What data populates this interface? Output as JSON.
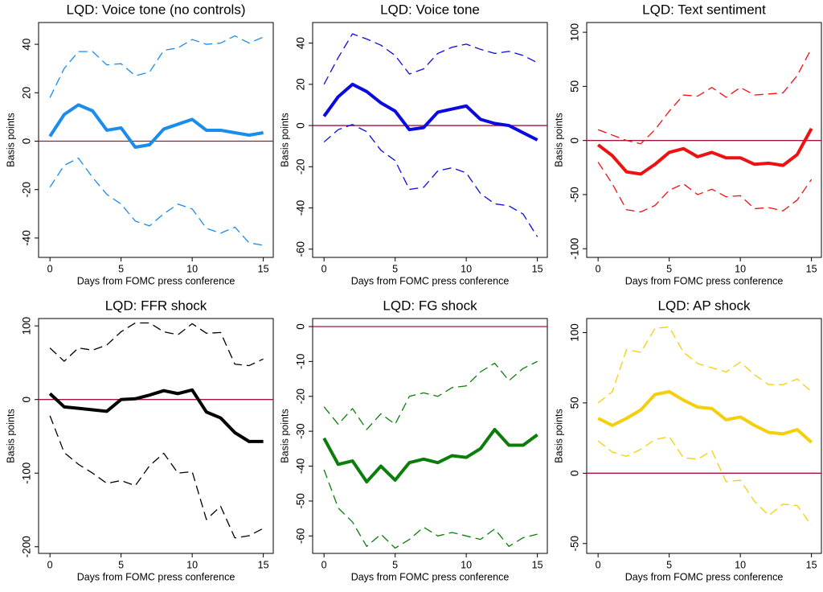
{
  "chart_data": [
    {
      "type": "line",
      "title": "LQD: Voice tone (no controls)",
      "y_label": "Basis points",
      "x_label": "Days from FOMC press conference",
      "x": [
        0,
        1,
        2,
        3,
        4,
        5,
        6,
        7,
        8,
        9,
        10,
        11,
        12,
        13,
        14,
        15
      ],
      "xlim": [
        -0.8,
        15.7
      ],
      "xticks": [
        0,
        5,
        10,
        15
      ],
      "ylim": [
        -48,
        49
      ],
      "yticks": [
        -40,
        -20,
        0,
        20,
        40
      ],
      "reference_line": 0,
      "reference_color": "#a0143c",
      "series": [
        {
          "color": "#1a8ceb",
          "line_style": "solid",
          "values": [
            2,
            11,
            15,
            12.5,
            4.5,
            5.5,
            -2.5,
            -1.5,
            5,
            7,
            9,
            4.5,
            4.5,
            3.5,
            2.5,
            3.5
          ]
        },
        {
          "color": "#1a8ceb",
          "line_style": "dashed",
          "values": [
            18,
            30,
            37,
            37,
            31.5,
            32,
            27,
            28.5,
            37.5,
            38.5,
            42,
            40,
            40.5,
            43.5,
            40.5,
            43
          ]
        },
        {
          "color": "#1a8ceb",
          "line_style": "dashed",
          "values": [
            -19,
            -10,
            -7,
            -15,
            -22,
            -26,
            -33,
            -35,
            -30,
            -26,
            -28,
            -36,
            -38,
            -35.5,
            -42,
            -43
          ]
        }
      ]
    },
    {
      "type": "line",
      "title": "LQD: Voice tone",
      "y_label": "Basis points",
      "x_label": "Days from FOMC press conference",
      "x": [
        0,
        1,
        2,
        3,
        4,
        5,
        6,
        7,
        8,
        9,
        10,
        11,
        12,
        13,
        14,
        15
      ],
      "xlim": [
        -0.8,
        15.7
      ],
      "xticks": [
        0,
        5,
        10,
        15
      ],
      "ylim": [
        -64,
        50
      ],
      "yticks": [
        -60,
        -40,
        -20,
        0,
        20,
        40
      ],
      "reference_line": 0,
      "reference_color": "#a0143c",
      "series": [
        {
          "color": "#0a0ae0",
          "line_style": "solid",
          "values": [
            4.5,
            14,
            20,
            16.5,
            11,
            7,
            -2,
            -1,
            6.5,
            8,
            9.5,
            3,
            1,
            0,
            -3.5,
            -7
          ]
        },
        {
          "color": "#0a0ae0",
          "line_style": "dashed",
          "values": [
            20,
            33,
            44.5,
            42,
            39,
            34,
            25,
            27.5,
            35,
            38,
            39.5,
            37,
            35,
            36,
            34,
            30.5
          ]
        },
        {
          "color": "#0a0ae0",
          "line_style": "dashed",
          "values": [
            -8,
            -2,
            0.5,
            -3,
            -12,
            -17,
            -31,
            -30,
            -22,
            -20.5,
            -23,
            -33,
            -38,
            -39,
            -43,
            -54
          ]
        }
      ]
    },
    {
      "type": "line",
      "title": "LQD: Text sentiment",
      "y_label": "Basis points",
      "x_label": "Days from FOMC press conference",
      "x": [
        0,
        1,
        2,
        3,
        4,
        5,
        6,
        7,
        8,
        9,
        10,
        11,
        12,
        13,
        14,
        15
      ],
      "xlim": [
        -0.8,
        15.7
      ],
      "xticks": [
        0,
        5,
        10,
        15
      ],
      "ylim": [
        -108,
        109
      ],
      "yticks": [
        -100,
        -50,
        0,
        50,
        100
      ],
      "reference_line": 0,
      "reference_color": "#a0143c",
      "series": [
        {
          "color": "#ee1111",
          "line_style": "solid",
          "values": [
            -4,
            -14,
            -29,
            -31,
            -22,
            -11,
            -7.5,
            -15,
            -11,
            -16,
            -16,
            -22,
            -21,
            -23,
            -13,
            11
          ]
        },
        {
          "color": "#ee1111",
          "line_style": "dashed",
          "values": [
            10,
            5,
            0,
            -3,
            10,
            27,
            42,
            41,
            49,
            40,
            49,
            42,
            43,
            44,
            60,
            85
          ]
        },
        {
          "color": "#ee1111",
          "line_style": "dashed",
          "values": [
            -20,
            -40,
            -64,
            -66,
            -60,
            -46,
            -40,
            -50,
            -45,
            -52,
            -51,
            -63,
            -62,
            -65,
            -55,
            -36
          ]
        }
      ]
    },
    {
      "type": "line",
      "title": "LQD: FFR shock",
      "y_label": "Basis points",
      "x_label": "Days from FOMC press conference",
      "x": [
        0,
        1,
        2,
        3,
        4,
        5,
        6,
        7,
        8,
        9,
        10,
        11,
        12,
        13,
        14,
        15
      ],
      "xlim": [
        -0.8,
        15.7
      ],
      "xticks": [
        0,
        5,
        10,
        15
      ],
      "ylim": [
        -209,
        110
      ],
      "yticks": [
        -200,
        -100,
        0,
        100
      ],
      "reference_line": 0,
      "reference_color": "#a0143c",
      "series": [
        {
          "color": "#000000",
          "line_style": "solid",
          "values": [
            8,
            -10,
            -12,
            -14,
            -16,
            0,
            1,
            6,
            12,
            8,
            13,
            -17,
            -25,
            -45,
            -57,
            -57
          ]
        },
        {
          "color": "#000000",
          "line_style": "dashed",
          "values": [
            70,
            52,
            70,
            67,
            74,
            92,
            104,
            104,
            92,
            88,
            103,
            90,
            91,
            48,
            46,
            55
          ]
        },
        {
          "color": "#000000",
          "line_style": "dashed",
          "values": [
            -22,
            -72,
            -88,
            -100,
            -114,
            -110,
            -117,
            -90,
            -73,
            -100,
            -98,
            -163,
            -145,
            -188,
            -185,
            -175
          ]
        }
      ]
    },
    {
      "type": "line",
      "title": "LQD: FG shock",
      "y_label": "Basis points",
      "x_label": "Days from FOMC press conference",
      "x": [
        0,
        1,
        2,
        3,
        4,
        5,
        6,
        7,
        8,
        9,
        10,
        11,
        12,
        13,
        14,
        15
      ],
      "xlim": [
        -0.8,
        15.7
      ],
      "xticks": [
        0,
        5,
        10,
        15
      ],
      "ylim": [
        -65,
        2.3
      ],
      "yticks": [
        -60,
        -50,
        -40,
        -30,
        -20,
        -10,
        0
      ],
      "reference_line": 0,
      "reference_color": "#a0143c",
      "series": [
        {
          "color": "#0a7d0a",
          "line_style": "solid",
          "values": [
            -32,
            -39.5,
            -38.5,
            -44.5,
            -40,
            -44,
            -39,
            -38,
            -39,
            -37,
            -37.5,
            -35,
            -29.5,
            -34,
            -34,
            -31
          ]
        },
        {
          "color": "#0a7d0a",
          "line_style": "dashed",
          "values": [
            -23,
            -28,
            -23.5,
            -29.5,
            -25,
            -28,
            -20,
            -19,
            -20,
            -17.5,
            -17,
            -13,
            -10.5,
            -15.5,
            -12,
            -10
          ]
        },
        {
          "color": "#0a7d0a",
          "line_style": "dashed",
          "values": [
            -41,
            -52,
            -56,
            -63,
            -59.5,
            -63.5,
            -61,
            -57.5,
            -60,
            -59,
            -60,
            -61,
            -58,
            -63,
            -60.5,
            -59.5
          ]
        }
      ]
    },
    {
      "type": "line",
      "title": "LQD: AP shock",
      "y_label": "Basis points",
      "x_label": "Days from FOMC press conference",
      "x": [
        0,
        1,
        2,
        3,
        4,
        5,
        6,
        7,
        8,
        9,
        10,
        11,
        12,
        13,
        14,
        15
      ],
      "xlim": [
        -0.8,
        15.7
      ],
      "xticks": [
        0,
        5,
        10,
        15
      ],
      "ylim": [
        -57,
        110
      ],
      "yticks": [
        -50,
        0,
        50,
        100
      ],
      "reference_line": 0,
      "reference_color": "#a0143c",
      "series": [
        {
          "color": "#f5cf0a",
          "line_style": "solid",
          "values": [
            39,
            34,
            39,
            45,
            56,
            58,
            52,
            47,
            46,
            38,
            40,
            34,
            29,
            28,
            31,
            22
          ]
        },
        {
          "color": "#f5cf0a",
          "line_style": "dashed",
          "values": [
            50,
            58,
            88,
            86,
            103,
            104,
            86,
            78,
            75,
            72,
            79,
            70,
            63,
            63,
            67,
            58
          ]
        },
        {
          "color": "#f5cf0a",
          "line_style": "dashed",
          "values": [
            23,
            15,
            12,
            17,
            24,
            26,
            11,
            10,
            16,
            -6,
            -5,
            -20,
            -30,
            -22,
            -23,
            -37
          ]
        }
      ]
    }
  ]
}
